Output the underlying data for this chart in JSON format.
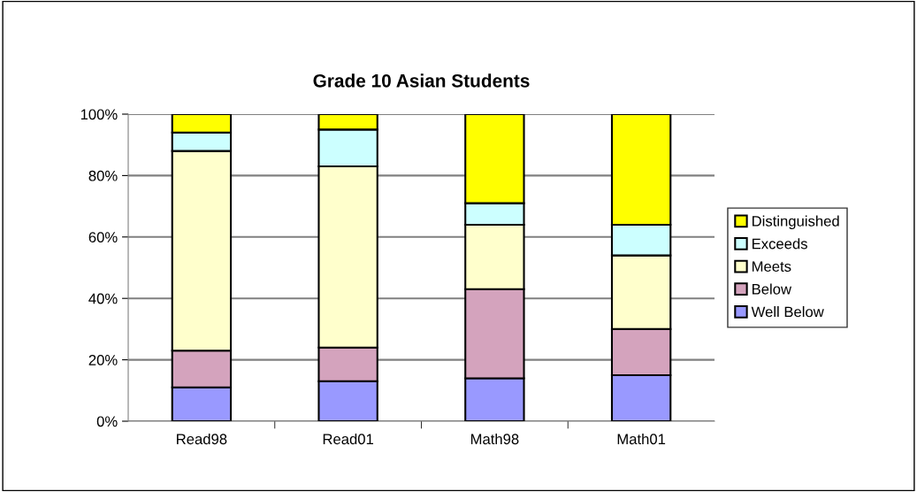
{
  "chart_data": {
    "type": "bar",
    "title": "Grade 10 Asian Students",
    "stacked": true,
    "categories": [
      "Read98",
      "Read01",
      "Math98",
      "Math01"
    ],
    "series": [
      {
        "name": "Well Below",
        "color": "#9999ff",
        "values": [
          11,
          13,
          14,
          15
        ]
      },
      {
        "name": "Below",
        "color": "#d4a3bd",
        "values": [
          12,
          11,
          29,
          15
        ]
      },
      {
        "name": "Meets",
        "color": "#ffffcc",
        "values": [
          65,
          59,
          21,
          24
        ]
      },
      {
        "name": "Exceeds",
        "color": "#ccffff",
        "values": [
          6,
          12,
          7,
          10
        ]
      },
      {
        "name": "Distinguished",
        "color": "#ffff00",
        "values": [
          6,
          5,
          29,
          36
        ]
      }
    ],
    "ylim": [
      0,
      100
    ],
    "yticks": [
      {
        "value": 0,
        "label": "0%"
      },
      {
        "value": 20,
        "label": "20%"
      },
      {
        "value": 40,
        "label": "40%"
      },
      {
        "value": 60,
        "label": "60%"
      },
      {
        "value": 80,
        "label": "80%"
      },
      {
        "value": 100,
        "label": "100%"
      }
    ],
    "grid": "y",
    "legend": "right"
  }
}
